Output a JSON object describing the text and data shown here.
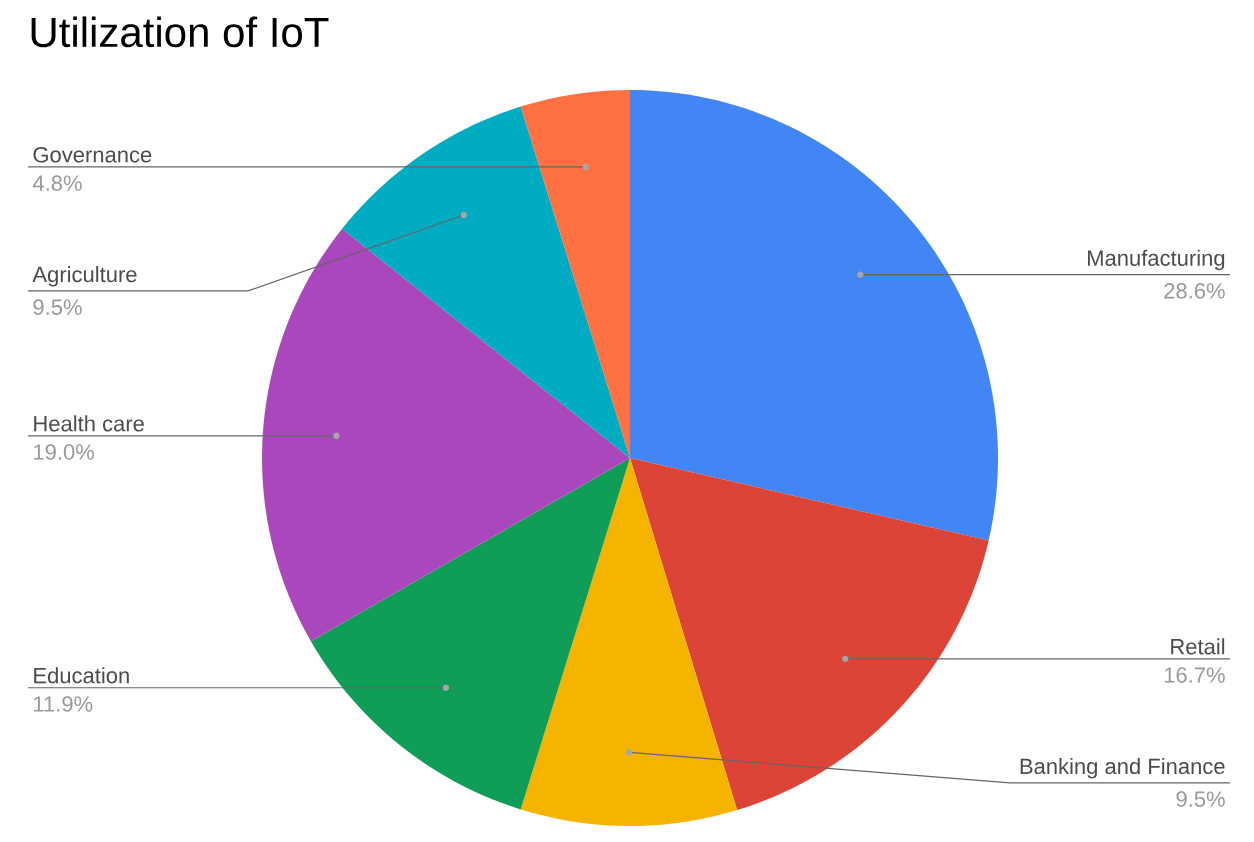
{
  "chart_data": {
    "type": "pie",
    "title": "Utilization of IoT",
    "categories": [
      "Manufacturing",
      "Retail",
      "Banking and Finance",
      "Education",
      "Health care",
      "Agriculture",
      "Governance"
    ],
    "values": [
      28.6,
      16.7,
      9.5,
      11.9,
      19.0,
      9.5,
      4.8
    ],
    "value_labels": [
      "28.6%",
      "16.7%",
      "9.5%",
      "11.9%",
      "19.0%",
      "9.5%",
      "4.8%"
    ],
    "colors": [
      "#4285f4",
      "#db4437",
      "#f4b400",
      "#0f9d58",
      "#ab47bc",
      "#00acc1",
      "#ff7043"
    ]
  }
}
